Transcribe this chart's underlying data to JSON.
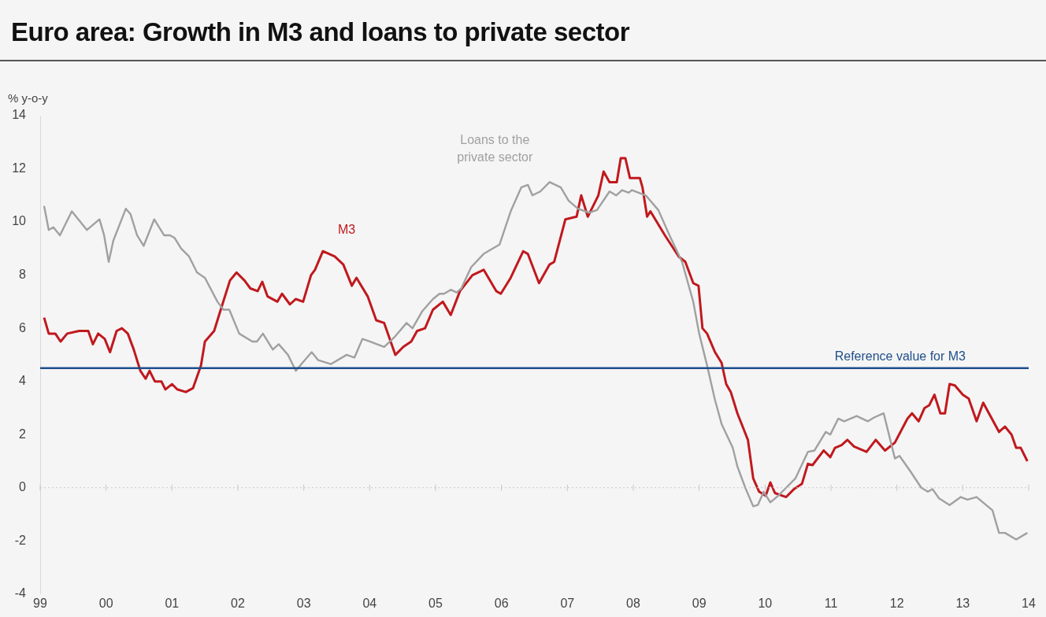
{
  "chart_data": {
    "type": "line",
    "title": "Euro area: Growth in M3 and loans to private sector",
    "ylabel": "% y-o-y",
    "xlim": [
      1999,
      2014
    ],
    "xticks": [
      {
        "value": 1999,
        "label": "99"
      },
      {
        "value": 2000,
        "label": "00"
      },
      {
        "value": 2001,
        "label": "01"
      },
      {
        "value": 2002,
        "label": "02"
      },
      {
        "value": 2003,
        "label": "03"
      },
      {
        "value": 2004,
        "label": "04"
      },
      {
        "value": 2005,
        "label": "05"
      },
      {
        "value": 2006,
        "label": "06"
      },
      {
        "value": 2007,
        "label": "07"
      },
      {
        "value": 2008,
        "label": "08"
      },
      {
        "value": 2009,
        "label": "09"
      },
      {
        "value": 2010,
        "label": "10"
      },
      {
        "value": 2011,
        "label": "11"
      },
      {
        "value": 2012,
        "label": "12"
      },
      {
        "value": 2013,
        "label": "13"
      },
      {
        "value": 2014,
        "label": "14"
      }
    ],
    "ylim": [
      -4,
      14
    ],
    "yticks": [
      -4,
      -2,
      0,
      2,
      4,
      6,
      8,
      10,
      12,
      14
    ],
    "grid": false,
    "legend": false,
    "marker": "none",
    "line_style": "solid",
    "series": [
      {
        "name": "M3",
        "color": "#c0191e",
        "x": [
          1999.06,
          1999.13,
          1999.23,
          1999.31,
          1999.41,
          1999.59,
          1999.73,
          1999.8,
          1999.88,
          1999.98,
          2000.06,
          2000.16,
          2000.24,
          2000.33,
          2000.42,
          2000.52,
          2000.6,
          2000.66,
          2000.74,
          2000.84,
          2000.9,
          2001.0,
          2001.08,
          2001.21,
          2001.32,
          2001.44,
          2001.5,
          2001.64,
          2001.74,
          2001.88,
          2001.98,
          2002.1,
          2002.19,
          2002.3,
          2002.37,
          2002.45,
          2002.6,
          2002.67,
          2002.79,
          2002.88,
          2002.99,
          2003.11,
          2003.17,
          2003.29,
          2003.47,
          2003.6,
          2003.73,
          2003.8,
          2003.97,
          2004.1,
          2004.22,
          2004.39,
          2004.51,
          2004.63,
          2004.72,
          2004.84,
          2004.96,
          2005.11,
          2005.23,
          2005.37,
          2005.56,
          2005.73,
          2005.92,
          2005.99,
          2006.14,
          2006.33,
          2006.4,
          2006.57,
          2006.73,
          2006.8,
          2006.97,
          2007.14,
          2007.21,
          2007.31,
          2007.47,
          2007.55,
          2007.64,
          2007.75,
          2007.81,
          2007.88,
          2007.95,
          2008.1,
          2008.14,
          2008.21,
          2008.26,
          2008.48,
          2008.69,
          2008.79,
          2008.91,
          2008.99,
          2009.05,
          2009.12,
          2009.24,
          2009.34,
          2009.41,
          2009.48,
          2009.58,
          2009.74,
          2009.82,
          2009.91,
          2010.01,
          2010.08,
          2010.15,
          2010.32,
          2010.44,
          2010.56,
          2010.65,
          2010.72,
          2010.89,
          2010.99,
          2011.06,
          2011.16,
          2011.25,
          2011.35,
          2011.54,
          2011.68,
          2011.82,
          2011.97,
          2012.16,
          2012.23,
          2012.33,
          2012.42,
          2012.49,
          2012.57,
          2012.66,
          2012.73,
          2012.8,
          2012.88,
          2013.0,
          2013.09,
          2013.21,
          2013.31,
          2013.43,
          2013.55,
          2013.64,
          2013.74,
          2013.81,
          2013.88,
          2013.98
        ],
        "values": [
          6.4,
          5.8,
          5.8,
          5.5,
          5.8,
          5.9,
          5.9,
          5.4,
          5.8,
          5.6,
          5.1,
          5.9,
          6.0,
          5.8,
          5.2,
          4.4,
          4.1,
          4.4,
          4.0,
          4.0,
          3.7,
          3.9,
          3.7,
          3.6,
          3.75,
          4.6,
          5.5,
          5.9,
          6.7,
          7.8,
          8.1,
          7.8,
          7.5,
          7.4,
          7.75,
          7.2,
          7.0,
          7.3,
          6.9,
          7.1,
          7.0,
          8.0,
          8.2,
          8.9,
          8.7,
          8.4,
          7.6,
          7.9,
          7.2,
          6.3,
          6.2,
          5.0,
          5.3,
          5.5,
          5.9,
          6.0,
          6.7,
          7.0,
          6.5,
          7.4,
          8.0,
          8.2,
          7.4,
          7.3,
          7.9,
          8.9,
          8.8,
          7.7,
          8.4,
          8.5,
          10.1,
          10.2,
          11.0,
          10.2,
          11.0,
          11.9,
          11.5,
          11.5,
          12.4,
          12.4,
          11.65,
          11.65,
          11.3,
          10.2,
          10.4,
          9.5,
          8.7,
          8.5,
          7.7,
          7.6,
          6.0,
          5.8,
          5.1,
          4.7,
          3.9,
          3.6,
          2.8,
          1.8,
          0.35,
          -0.15,
          -0.3,
          0.2,
          -0.2,
          -0.35,
          -0.05,
          0.15,
          0.9,
          0.85,
          1.4,
          1.15,
          1.5,
          1.6,
          1.8,
          1.55,
          1.35,
          1.8,
          1.4,
          1.7,
          2.6,
          2.8,
          2.5,
          3.0,
          3.1,
          3.5,
          2.8,
          2.8,
          3.9,
          3.85,
          3.5,
          3.35,
          2.5,
          3.2,
          2.65,
          2.1,
          2.3,
          2.0,
          1.5,
          1.5,
          1.0
        ]
      },
      {
        "name": "Loans to the private sector",
        "color": "#a0a0a0",
        "x": [
          1999.06,
          1999.13,
          1999.2,
          1999.3,
          1999.48,
          1999.71,
          1999.9,
          1999.97,
          2000.04,
          2000.11,
          2000.3,
          2000.37,
          2000.47,
          2000.57,
          2000.73,
          2000.88,
          2000.97,
          2001.04,
          2001.14,
          2001.26,
          2001.38,
          2001.5,
          2001.69,
          2001.78,
          2001.87,
          2002.02,
          2002.22,
          2002.29,
          2002.38,
          2002.53,
          2002.62,
          2002.76,
          2002.88,
          2002.98,
          2003.12,
          2003.22,
          2003.41,
          2003.65,
          2003.77,
          2003.89,
          2004.01,
          2004.22,
          2004.37,
          2004.56,
          2004.65,
          2004.8,
          2004.96,
          2005.06,
          2005.13,
          2005.23,
          2005.32,
          2005.39,
          2005.54,
          2005.73,
          2005.97,
          2006.14,
          2006.3,
          2006.4,
          2006.47,
          2006.59,
          2006.73,
          2006.9,
          2007.02,
          2007.16,
          2007.33,
          2007.45,
          2007.64,
          2007.74,
          2007.83,
          2007.93,
          2007.98,
          2008.19,
          2008.38,
          2008.55,
          2008.74,
          2008.91,
          2009.0,
          2009.12,
          2009.24,
          2009.34,
          2009.51,
          2009.58,
          2009.7,
          2009.82,
          2009.89,
          2009.98,
          2010.08,
          2010.2,
          2010.32,
          2010.46,
          2010.65,
          2010.75,
          2010.92,
          2010.99,
          2011.11,
          2011.2,
          2011.39,
          2011.56,
          2011.66,
          2011.8,
          2011.97,
          2012.04,
          2012.21,
          2012.37,
          2012.47,
          2012.54,
          2012.64,
          2012.8,
          2012.97,
          2013.07,
          2013.21,
          2013.45,
          2013.55,
          2013.64,
          2013.81,
          2013.98
        ],
        "values": [
          10.6,
          9.7,
          9.8,
          9.5,
          10.4,
          9.7,
          10.1,
          9.5,
          8.5,
          9.3,
          10.5,
          10.3,
          9.5,
          9.1,
          10.1,
          9.5,
          9.5,
          9.4,
          9.0,
          8.7,
          8.1,
          7.9,
          7.0,
          6.7,
          6.7,
          5.8,
          5.5,
          5.5,
          5.8,
          5.2,
          5.4,
          5.0,
          4.4,
          4.7,
          5.1,
          4.8,
          4.65,
          5.0,
          4.9,
          5.6,
          5.5,
          5.3,
          5.65,
          6.2,
          6.0,
          6.65,
          7.1,
          7.3,
          7.3,
          7.45,
          7.35,
          7.5,
          8.3,
          8.8,
          9.15,
          10.4,
          11.3,
          11.4,
          11.0,
          11.15,
          11.5,
          11.3,
          10.8,
          10.5,
          10.35,
          10.45,
          11.15,
          11.0,
          11.2,
          11.1,
          11.2,
          11.0,
          10.45,
          9.5,
          8.5,
          7.0,
          5.8,
          4.6,
          3.3,
          2.4,
          1.5,
          0.8,
          0.0,
          -0.7,
          -0.65,
          -0.15,
          -0.55,
          -0.3,
          0.0,
          0.35,
          1.35,
          1.4,
          2.1,
          2.0,
          2.6,
          2.5,
          2.7,
          2.5,
          2.65,
          2.8,
          1.1,
          1.2,
          0.6,
          0.0,
          -0.15,
          -0.05,
          -0.4,
          -0.65,
          -0.35,
          -0.45,
          -0.35,
          -0.85,
          -1.7,
          -1.7,
          -1.95,
          -1.7
        ]
      }
    ],
    "ref_lines": [
      {
        "axis": "y",
        "value": 0,
        "color": "#c8c8c8",
        "line_style": "dotted"
      },
      {
        "axis": "y",
        "value": 4.5,
        "label": "Reference value for M3",
        "color": "#1f4e8c"
      }
    ]
  }
}
